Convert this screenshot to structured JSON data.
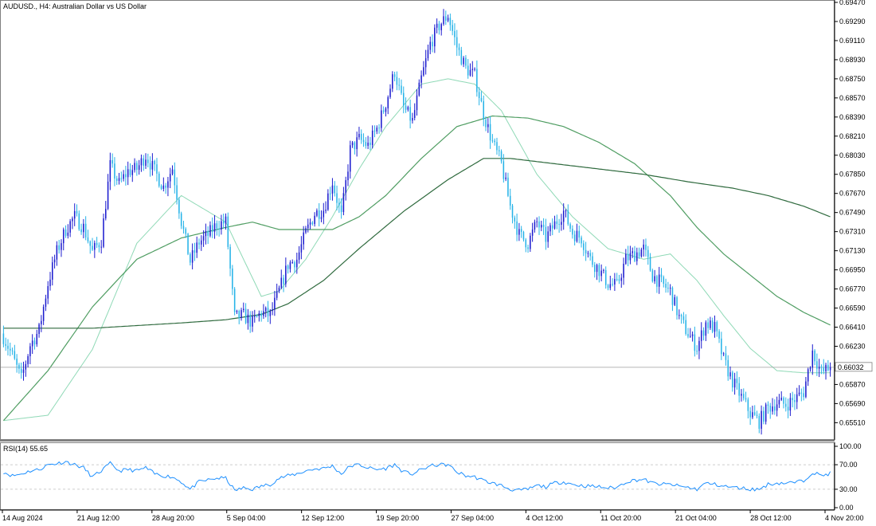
{
  "window": {
    "title": "AUDUSD., H4:  Australian Dollar vs US Dollar"
  },
  "colors": {
    "bull": "#1c1ccf",
    "bear": "#26b3e8",
    "ma_fast": "#8fd9b6",
    "ma_mid": "#4f9d62",
    "ma_slow": "#2f6a3e",
    "rsi": "#1e90ff",
    "grid": "#bdbdbd"
  },
  "chart_data": [
    {
      "type": "candlestick",
      "title": "AUDUSD., H4:  Australian Dollar vs US Dollar",
      "ylim": [
        0.6537,
        0.6947
      ],
      "y_ticks": [
        "0.69470",
        "0.69290",
        "0.69110",
        "0.68930",
        "0.68750",
        "0.68570",
        "0.68390",
        "0.68210",
        "0.68030",
        "0.67850",
        "0.67670",
        "0.67490",
        "0.67310",
        "0.67130",
        "0.66950",
        "0.66770",
        "0.66590",
        "0.66410",
        "0.66230",
        "0.66050",
        "0.65870",
        "0.65690",
        "0.65510"
      ],
      "x_ticks": [
        "14 Aug 2024",
        "21 Aug 12:00",
        "28 Aug 20:00",
        "5 Sep 04:00",
        "12 Sep 12:00",
        "19 Sep 20:00",
        "27 Sep 04:00",
        "4 Oct 12:00",
        "11 Oct 20:00",
        "21 Oct 04:00",
        "28 Oct 12:00",
        "4 Nov 20:00"
      ],
      "current_price": "0.66032",
      "close_path": [
        [
          0,
          0.6632
        ],
        [
          4,
          0.6614
        ],
        [
          8,
          0.6592
        ],
        [
          12,
          0.6624
        ],
        [
          16,
          0.6638
        ],
        [
          20,
          0.6682
        ],
        [
          24,
          0.6712
        ],
        [
          28,
          0.6733
        ],
        [
          32,
          0.6745
        ],
        [
          36,
          0.6735
        ],
        [
          40,
          0.6712
        ],
        [
          44,
          0.6723
        ],
        [
          48,
          0.6793
        ],
        [
          52,
          0.6776
        ],
        [
          56,
          0.6788
        ],
        [
          60,
          0.679
        ],
        [
          64,
          0.6803
        ],
        [
          68,
          0.6788
        ],
        [
          72,
          0.6773
        ],
        [
          76,
          0.6791
        ],
        [
          80,
          0.6741
        ],
        [
          84,
          0.6703
        ],
        [
          88,
          0.6721
        ],
        [
          92,
          0.6728
        ],
        [
          96,
          0.6738
        ],
        [
          100,
          0.674
        ],
        [
          104,
          0.665
        ],
        [
          108,
          0.6652
        ],
        [
          112,
          0.6645
        ],
        [
          116,
          0.6655
        ],
        [
          120,
          0.6652
        ],
        [
          124,
          0.6675
        ],
        [
          128,
          0.67
        ],
        [
          132,
          0.6705
        ],
        [
          136,
          0.673
        ],
        [
          140,
          0.6748
        ],
        [
          144,
          0.6752
        ],
        [
          148,
          0.6778
        ],
        [
          152,
          0.6745
        ],
        [
          156,
          0.6808
        ],
        [
          160,
          0.6818
        ],
        [
          164,
          0.6812
        ],
        [
          168,
          0.6828
        ],
        [
          172,
          0.6852
        ],
        [
          176,
          0.6882
        ],
        [
          180,
          0.6848
        ],
        [
          184,
          0.6835
        ],
        [
          188,
          0.6875
        ],
        [
          192,
          0.6908
        ],
        [
          196,
          0.6925
        ],
        [
          200,
          0.6935
        ],
        [
          204,
          0.6905
        ],
        [
          208,
          0.6885
        ],
        [
          212,
          0.6878
        ],
        [
          216,
          0.6842
        ],
        [
          220,
          0.6815
        ],
        [
          224,
          0.6795
        ],
        [
          228,
          0.6755
        ],
        [
          232,
          0.6728
        ],
        [
          236,
          0.672
        ],
        [
          240,
          0.674
        ],
        [
          244,
          0.6725
        ],
        [
          248,
          0.6738
        ],
        [
          252,
          0.675
        ],
        [
          256,
          0.673
        ],
        [
          260,
          0.6725
        ],
        [
          264,
          0.6705
        ],
        [
          268,
          0.6695
        ],
        [
          272,
          0.6682
        ],
        [
          276,
          0.668
        ],
        [
          280,
          0.6705
        ],
        [
          284,
          0.671
        ],
        [
          288,
          0.6715
        ],
        [
          292,
          0.669
        ],
        [
          296,
          0.6682
        ],
        [
          300,
          0.6675
        ],
        [
          304,
          0.665
        ],
        [
          308,
          0.6635
        ],
        [
          312,
          0.6622
        ],
        [
          316,
          0.6645
        ],
        [
          320,
          0.664
        ],
        [
          324,
          0.661
        ],
        [
          328,
          0.659
        ],
        [
          332,
          0.6575
        ],
        [
          336,
          0.656
        ],
        [
          340,
          0.6552
        ],
        [
          344,
          0.6565
        ],
        [
          348,
          0.657
        ],
        [
          352,
          0.6568
        ],
        [
          356,
          0.6573
        ],
        [
          360,
          0.658
        ],
        [
          364,
          0.6618
        ],
        [
          368,
          0.6598
        ],
        [
          372,
          0.6603
        ]
      ],
      "series": [
        {
          "values": [
            [
              0,
              0.6553
            ],
            [
              20,
              0.6558
            ],
            [
              40,
              0.662
            ],
            [
              60,
              0.672
            ],
            [
              80,
              0.6765
            ],
            [
              100,
              0.674
            ],
            [
              108,
              0.6705
            ],
            [
              116,
              0.667
            ],
            [
              124,
              0.6675
            ],
            [
              136,
              0.6705
            ],
            [
              148,
              0.6745
            ],
            [
              160,
              0.679
            ],
            [
              172,
              0.683
            ],
            [
              188,
              0.687
            ],
            [
              200,
              0.6875
            ],
            [
              212,
              0.687
            ],
            [
              224,
              0.6845
            ],
            [
              240,
              0.6785
            ],
            [
              256,
              0.6745
            ],
            [
              272,
              0.6715
            ],
            [
              288,
              0.6705
            ],
            [
              300,
              0.671
            ],
            [
              312,
              0.6685
            ],
            [
              324,
              0.6652
            ],
            [
              336,
              0.6621
            ],
            [
              348,
              0.66
            ],
            [
              360,
              0.6598
            ],
            [
              372,
              0.6598
            ]
          ]
        },
        {
          "values": [
            [
              0,
              0.6553
            ],
            [
              20,
              0.66
            ],
            [
              40,
              0.666
            ],
            [
              60,
              0.6705
            ],
            [
              80,
              0.6725
            ],
            [
              100,
              0.6735
            ],
            [
              112,
              0.674
            ],
            [
              124,
              0.6733
            ],
            [
              136,
              0.6733
            ],
            [
              148,
              0.6733
            ],
            [
              160,
              0.6745
            ],
            [
              172,
              0.6765
            ],
            [
              188,
              0.68
            ],
            [
              204,
              0.683
            ],
            [
              220,
              0.684
            ],
            [
              236,
              0.6838
            ],
            [
              252,
              0.683
            ],
            [
              268,
              0.6815
            ],
            [
              284,
              0.6795
            ],
            [
              300,
              0.6765
            ],
            [
              312,
              0.6735
            ],
            [
              324,
              0.671
            ],
            [
              336,
              0.669
            ],
            [
              348,
              0.667
            ],
            [
              360,
              0.6655
            ],
            [
              372,
              0.6643
            ]
          ]
        },
        {
          "values": [
            [
              0,
              0.664
            ],
            [
              40,
              0.664
            ],
            [
              80,
              0.6645
            ],
            [
              100,
              0.6648
            ],
            [
              116,
              0.6653
            ],
            [
              128,
              0.6663
            ],
            [
              144,
              0.6685
            ],
            [
              160,
              0.6715
            ],
            [
              180,
              0.675
            ],
            [
              200,
              0.678
            ],
            [
              216,
              0.68
            ],
            [
              228,
              0.68
            ],
            [
              248,
              0.6795
            ],
            [
              268,
              0.679
            ],
            [
              288,
              0.6785
            ],
            [
              308,
              0.6778
            ],
            [
              328,
              0.6772
            ],
            [
              344,
              0.6765
            ],
            [
              360,
              0.6755
            ],
            [
              372,
              0.6745
            ]
          ]
        }
      ]
    },
    {
      "type": "line",
      "title": "RSI(14) 55.65",
      "ylim": [
        0,
        100
      ],
      "y_ticks": [
        "100.00",
        "70.00",
        "30.00",
        "0.00"
      ],
      "levels": [
        70,
        30
      ],
      "series": [
        {
          "values": [
            [
              0,
              58
            ],
            [
              4,
              52
            ],
            [
              8,
              55
            ],
            [
              12,
              60
            ],
            [
              16,
              62
            ],
            [
              20,
              70
            ],
            [
              24,
              72
            ],
            [
              28,
              75
            ],
            [
              32,
              70
            ],
            [
              36,
              65
            ],
            [
              40,
              50
            ],
            [
              44,
              60
            ],
            [
              48,
              72
            ],
            [
              52,
              60
            ],
            [
              56,
              62
            ],
            [
              60,
              60
            ],
            [
              64,
              65
            ],
            [
              68,
              55
            ],
            [
              72,
              52
            ],
            [
              76,
              50
            ],
            [
              80,
              42
            ],
            [
              84,
              30
            ],
            [
              88,
              42
            ],
            [
              92,
              45
            ],
            [
              96,
              48
            ],
            [
              100,
              48
            ],
            [
              104,
              28
            ],
            [
              108,
              32
            ],
            [
              112,
              30
            ],
            [
              116,
              35
            ],
            [
              120,
              38
            ],
            [
              124,
              48
            ],
            [
              128,
              52
            ],
            [
              132,
              55
            ],
            [
              136,
              60
            ],
            [
              140,
              63
            ],
            [
              144,
              64
            ],
            [
              148,
              68
            ],
            [
              152,
              55
            ],
            [
              156,
              68
            ],
            [
              160,
              70
            ],
            [
              164,
              65
            ],
            [
              168,
              62
            ],
            [
              172,
              64
            ],
            [
              176,
              70
            ],
            [
              180,
              58
            ],
            [
              184,
              55
            ],
            [
              188,
              62
            ],
            [
              192,
              68
            ],
            [
              196,
              70
            ],
            [
              200,
              70
            ],
            [
              204,
              58
            ],
            [
              208,
              52
            ],
            [
              212,
              50
            ],
            [
              216,
              44
            ],
            [
              220,
              40
            ],
            [
              224,
              36
            ],
            [
              228,
              30
            ],
            [
              232,
              28
            ],
            [
              236,
              30
            ],
            [
              240,
              36
            ],
            [
              244,
              34
            ],
            [
              248,
              40
            ],
            [
              252,
              42
            ],
            [
              256,
              38
            ],
            [
              260,
              36
            ],
            [
              264,
              35
            ],
            [
              268,
              34
            ],
            [
              272,
              32
            ],
            [
              276,
              33
            ],
            [
              280,
              42
            ],
            [
              284,
              45
            ],
            [
              288,
              46
            ],
            [
              292,
              40
            ],
            [
              296,
              38
            ],
            [
              300,
              38
            ],
            [
              304,
              35
            ],
            [
              308,
              33
            ],
            [
              312,
              30
            ],
            [
              316,
              40
            ],
            [
              320,
              38
            ],
            [
              324,
              35
            ],
            [
              328,
              33
            ],
            [
              332,
              32
            ],
            [
              336,
              30
            ],
            [
              340,
              30
            ],
            [
              344,
              38
            ],
            [
              348,
              40
            ],
            [
              352,
              40
            ],
            [
              356,
              41
            ],
            [
              360,
              44
            ],
            [
              364,
              58
            ],
            [
              368,
              52
            ],
            [
              372,
              56
            ]
          ]
        }
      ]
    }
  ]
}
